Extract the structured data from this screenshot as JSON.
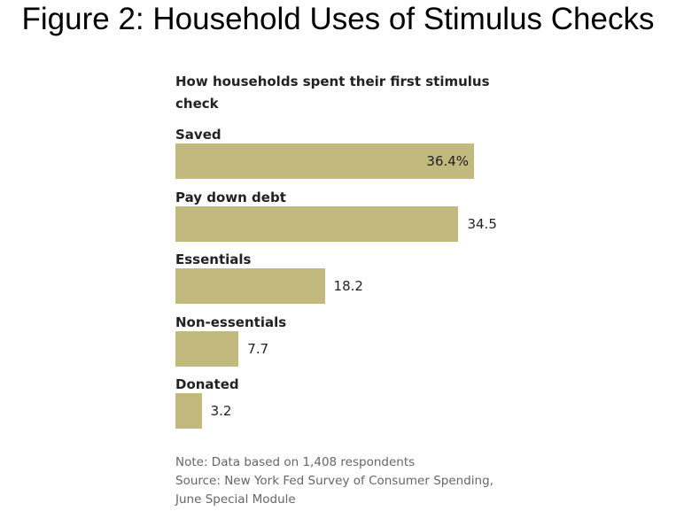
{
  "chart_data": {
    "type": "bar",
    "orientation": "horizontal",
    "title": "Figure 2: Household Uses of Stimulus Checks",
    "subtitle": "How households spent their first stimulus check",
    "categories": [
      "Saved",
      "Pay down debt",
      "Essentials",
      "Non-essentials",
      "Donated"
    ],
    "values": [
      36.4,
      34.5,
      18.2,
      7.7,
      3.2
    ],
    "value_labels": [
      "36.4%",
      "34.5",
      "18.2",
      "7.7",
      "3.2"
    ],
    "color": "#c2b97f",
    "note": "Note: Data based on 1,408 respondents",
    "source": "Source: New York Fed Survey of Consumer Spending, June Special Module"
  }
}
